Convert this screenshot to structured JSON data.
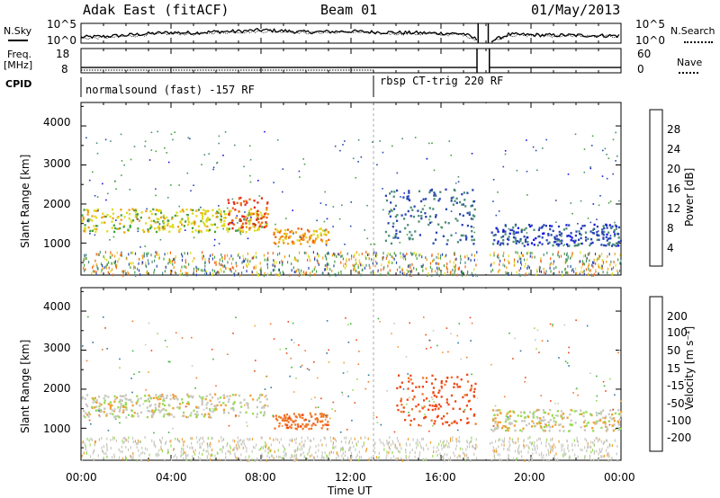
{
  "header": {
    "station": "Adak East (fitACF)",
    "beam": "Beam 01",
    "date": "01/May/2013"
  },
  "side_labels": {
    "nsky": "N.Sky",
    "nsearch": "N.Search",
    "freq_line1": "Freq.",
    "freq_line2": "[MHz]",
    "nave": "Nave",
    "cpid": "CPID"
  },
  "cpid_segments": [
    {
      "label": "normalsound (fast) -157 RF"
    },
    {
      "label": "rbsp CT-trig 220 RF"
    }
  ],
  "colors": {
    "power_scale": [
      "#1414e6",
      "#2846b4",
      "#4a8c78",
      "#46a03c",
      "#dcdc1e",
      "#f0a014",
      "#f06414",
      "#e62814"
    ],
    "velocity_scale": [
      "#e60a0a",
      "#f04614",
      "#f07828",
      "#f0a032",
      "#c8c8c0",
      "#c8c8c0",
      "#96dc50",
      "#3cb43c",
      "#2878a0",
      "#1e50b4",
      "#1428c8"
    ]
  },
  "chart_data": [
    {
      "type": "line",
      "panel": "noise",
      "left_axis": {
        "label": "N.Sky",
        "ticks": [
          "10^5",
          "10^0"
        ]
      },
      "right_axis": {
        "label": "N.Search",
        "ticks": [
          "10^5",
          "10^0"
        ]
      },
      "x": [
        "00:00",
        "01:00",
        "02:00",
        "03:00",
        "04:00",
        "05:00",
        "06:00",
        "07:00",
        "08:00",
        "09:00",
        "10:00",
        "11:00",
        "12:00",
        "13:00",
        "14:00",
        "15:00",
        "16:00",
        "17:00",
        "18:00",
        "19:00",
        "20:00",
        "21:00",
        "22:00",
        "23:00",
        "24:00"
      ],
      "series": [
        {
          "values": [
            1.5,
            1.7,
            2.0,
            2.4,
            2.7,
            2.6,
            2.9,
            3.0,
            3.3,
            3.1,
            2.8,
            2.9,
            3.0,
            2.8,
            2.7,
            2.6,
            2.5,
            2.4,
            0.0,
            2.2,
            2.1,
            2.0,
            2.0,
            1.9,
            1.9
          ]
        },
        {
          "values": [
            1.2,
            1.4,
            1.7,
            2.2,
            2.4,
            2.3,
            2.7,
            2.8,
            3.0,
            2.9,
            2.6,
            2.7,
            2.8,
            2.5,
            2.4,
            2.3,
            2.2,
            2.1,
            0.0,
            2.0,
            1.9,
            1.8,
            1.8,
            1.7,
            1.7
          ]
        }
      ],
      "ylim": [
        0,
        5
      ]
    },
    {
      "type": "line",
      "panel": "frequency",
      "left_axis": {
        "label": "Freq. [MHz]",
        "ticks": [
          "18",
          "8"
        ],
        "ylim": [
          8,
          18
        ]
      },
      "right_axis": {
        "label": "Nave",
        "ticks": [
          "60",
          "0"
        ],
        "ylim": [
          0,
          60
        ]
      },
      "x": [
        "00:00",
        "13:00",
        "17:30",
        "18:00",
        "24:00"
      ],
      "series": [
        {
          "values": [
            10.2,
            10.2,
            10.2,
            8.0,
            10.2
          ]
        },
        {
          "values": [
            3,
            3,
            3,
            0,
            3
          ]
        }
      ]
    },
    {
      "type": "heatmap",
      "panel": "power",
      "xlabel": "",
      "ylabel": "Slant Range [km]",
      "yticks": [
        1000,
        2000,
        3000,
        4000
      ],
      "ylim": [
        180,
        4600
      ],
      "xticks": [
        "00:00",
        "04:00",
        "08:00",
        "12:00",
        "16:00",
        "20:00",
        "00:00"
      ],
      "xlim": [
        0,
        24
      ],
      "colorbar": {
        "label": "Power [dB]",
        "ticks": [
          4,
          8,
          12,
          16,
          20,
          24,
          28
        ],
        "range": [
          0,
          32
        ]
      },
      "features": [
        {
          "t_start": 0.0,
          "t_end": 8.3,
          "range_start": 1300,
          "range_end": 1900,
          "value": 18
        },
        {
          "t_start": 6.5,
          "t_end": 8.3,
          "range_start": 1400,
          "range_end": 2200,
          "value": 28
        },
        {
          "t_start": 8.5,
          "t_end": 11.0,
          "range_start": 1000,
          "range_end": 1400,
          "value": 22
        },
        {
          "t_start": 13.5,
          "t_end": 17.5,
          "range_start": 1000,
          "range_end": 2400,
          "value": 8
        },
        {
          "t_start": 18.2,
          "t_end": 24.0,
          "range_start": 950,
          "range_end": 1500,
          "value": 6
        }
      ]
    },
    {
      "type": "heatmap",
      "panel": "velocity",
      "xlabel": "Time UT",
      "ylabel": "Slant Range [km]",
      "yticks": [
        1000,
        2000,
        3000,
        4000
      ],
      "ylim": [
        180,
        4600
      ],
      "xticks": [
        "00:00",
        "04:00",
        "08:00",
        "12:00",
        "16:00",
        "20:00",
        "00:00"
      ],
      "xlim": [
        0,
        24
      ],
      "colorbar": {
        "label": "Velocity [m s⁻¹]",
        "ticks": [
          200,
          100,
          50,
          15,
          -15,
          -50,
          -100,
          -200
        ],
        "range": [
          -250,
          250
        ]
      },
      "features": [
        {
          "t_start": 0.0,
          "t_end": 8.3,
          "range_start": 1300,
          "range_end": 1900,
          "value": 0
        },
        {
          "t_start": 8.5,
          "t_end": 11.0,
          "range_start": 1000,
          "range_end": 1400,
          "value": -80
        },
        {
          "t_start": 14.0,
          "t_end": 17.5,
          "range_start": 1100,
          "range_end": 2400,
          "value": -120
        },
        {
          "t_start": 18.2,
          "t_end": 24.0,
          "range_start": 950,
          "range_end": 1500,
          "value": 0
        }
      ]
    }
  ]
}
